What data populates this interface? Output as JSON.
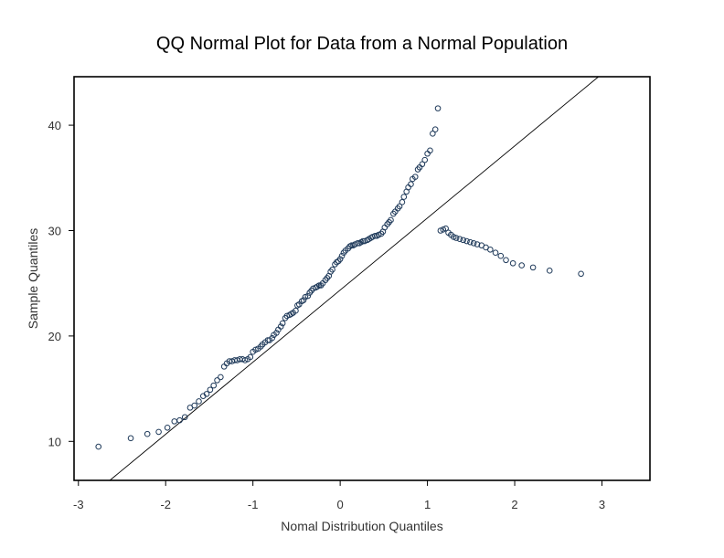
{
  "chart_data": {
    "type": "scatter",
    "title": "QQ Normal Plot for Data from a Normal Population",
    "xlabel": "Nomal Distribution Quantiles",
    "ylabel": "Sample Quantiles",
    "xlim": [
      -3.05,
      3.55
    ],
    "ylim": [
      6.3,
      44.6
    ],
    "xticks": [
      "-3",
      "-2",
      "-1",
      "0",
      "1",
      "2",
      "3"
    ],
    "yticks": [
      "10",
      "20",
      "30",
      "40"
    ],
    "grid": false,
    "legend": "none",
    "colors": {
      "points": "#1f3a5a",
      "reference_line": "#000000",
      "frame": "#000000"
    },
    "reference_line": {
      "x": [
        -2.64,
        2.96
      ],
      "y": [
        6.3,
        44.6
      ]
    },
    "points": {
      "x": [
        -2.77,
        -2.4,
        -2.21,
        -2.08,
        -1.98,
        -1.9,
        -1.84,
        -1.78,
        -1.72,
        -1.67,
        -1.62,
        -1.57,
        -1.53,
        -1.49,
        -1.45,
        -1.41,
        -1.37,
        -1.33,
        -1.3,
        -1.27,
        -1.24,
        -1.21,
        -1.18,
        -1.15,
        -1.12,
        -1.09,
        -1.06,
        -1.03,
        -1.0,
        -0.97,
        -0.94,
        -0.91,
        -0.89,
        -0.86,
        -0.83,
        -0.81,
        -0.78,
        -0.76,
        -0.73,
        -0.71,
        -0.68,
        -0.66,
        -0.63,
        -0.61,
        -0.58,
        -0.56,
        -0.54,
        -0.51,
        -0.49,
        -0.47,
        -0.44,
        -0.42,
        -0.4,
        -0.37,
        -0.35,
        -0.33,
        -0.31,
        -0.28,
        -0.26,
        -0.24,
        -0.22,
        -0.2,
        -0.17,
        -0.15,
        -0.13,
        -0.11,
        -0.09,
        -0.06,
        -0.04,
        -0.02,
        0.0,
        0.02,
        0.04,
        0.06,
        0.09,
        0.11,
        0.13,
        0.15,
        0.17,
        0.2,
        0.22,
        0.24,
        0.26,
        0.28,
        0.31,
        0.33,
        0.35,
        0.37,
        0.4,
        0.42,
        0.44,
        0.47,
        0.49,
        0.51,
        0.54,
        0.56,
        0.58,
        0.61,
        0.63,
        0.66,
        0.68,
        0.71,
        0.73,
        0.76,
        0.78,
        0.81,
        0.83,
        0.86,
        0.89,
        0.91,
        0.94,
        0.97,
        1.0,
        1.03,
        1.06,
        1.09,
        1.12,
        1.15,
        1.18,
        1.21,
        1.24,
        1.27,
        1.3,
        1.33,
        1.37,
        1.41,
        1.45,
        1.49,
        1.53,
        1.57,
        1.62,
        1.67,
        1.72,
        1.78,
        1.84,
        1.9,
        1.98,
        2.08,
        2.21,
        2.4,
        2.76
      ],
      "y": [
        9.5,
        10.3,
        10.7,
        10.9,
        11.3,
        11.9,
        12.0,
        12.3,
        13.2,
        13.4,
        13.8,
        14.3,
        14.5,
        14.9,
        15.3,
        15.8,
        16.1,
        17.1,
        17.4,
        17.6,
        17.6,
        17.7,
        17.7,
        17.8,
        17.8,
        17.7,
        17.8,
        18.0,
        18.5,
        18.7,
        18.8,
        19.0,
        19.2,
        19.4,
        19.6,
        19.6,
        19.8,
        20.1,
        20.3,
        20.6,
        20.9,
        21.2,
        21.7,
        21.9,
        22.0,
        22.1,
        22.2,
        22.4,
        22.9,
        23.0,
        23.3,
        23.4,
        23.7,
        23.8,
        24.1,
        24.3,
        24.5,
        24.6,
        24.7,
        24.8,
        24.8,
        25.0,
        25.3,
        25.5,
        25.7,
        26.1,
        26.3,
        26.8,
        27.0,
        27.1,
        27.3,
        27.6,
        27.9,
        28.1,
        28.3,
        28.5,
        28.6,
        28.6,
        28.7,
        28.8,
        28.8,
        28.9,
        29.0,
        29.0,
        29.1,
        29.2,
        29.3,
        29.4,
        29.5,
        29.5,
        29.6,
        29.7,
        29.9,
        30.3,
        30.6,
        30.8,
        31.0,
        31.6,
        31.8,
        32.1,
        32.3,
        32.7,
        33.2,
        33.7,
        34.1,
        34.4,
        34.9,
        35.1,
        35.8,
        36.0,
        36.3,
        36.7,
        37.3,
        37.6,
        39.2,
        39.6,
        41.6,
        30.0,
        30.1,
        30.2,
        29.8,
        29.6,
        29.4,
        29.3,
        29.2,
        29.1,
        29.0,
        28.9,
        28.8,
        28.7,
        28.6,
        28.4,
        28.2,
        27.9,
        27.6,
        27.2,
        26.9,
        26.7,
        26.5,
        26.2,
        25.9
      ]
    }
  }
}
